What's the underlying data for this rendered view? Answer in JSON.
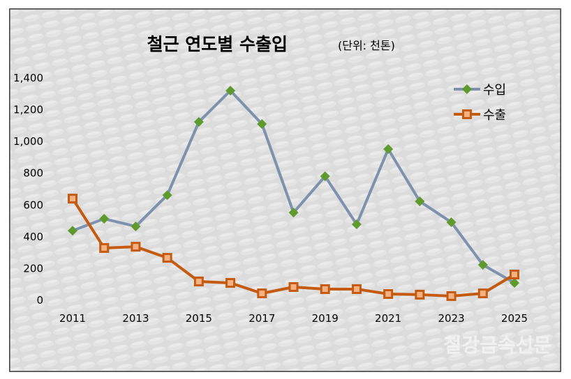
{
  "watermark": "철강금속신문",
  "chart_data": {
    "type": "line",
    "title": "철근 연도별 수출입",
    "subtitle": "(단위: 천톤)",
    "xlabel": "",
    "ylabel": "",
    "ylim": [
      0,
      1400
    ],
    "yticks": [
      "0",
      "200",
      "400",
      "600",
      "800",
      "1,000",
      "1,200",
      "1,400"
    ],
    "ytick_values": [
      0,
      200,
      400,
      600,
      800,
      1000,
      1200,
      1400
    ],
    "x": [
      2011,
      2012,
      2013,
      2014,
      2015,
      2016,
      2017,
      2018,
      2019,
      2020,
      2021,
      2022,
      2023,
      2024,
      2025
    ],
    "xticks": [
      "2011",
      "2013",
      "2015",
      "2017",
      "2019",
      "2021",
      "2023",
      "2025"
    ],
    "xtick_values": [
      2011,
      2013,
      2015,
      2017,
      2019,
      2021,
      2023,
      2025
    ],
    "grid": false,
    "legend_position": "top-right",
    "series": [
      {
        "name": "수입",
        "color": "#7f92ad",
        "marker_color": "#5e9a2e",
        "marker": "diamond",
        "values": [
          434,
          509,
          461,
          658,
          1119,
          1316,
          1106,
          548,
          777,
          474,
          948,
          619,
          487,
          219,
          105
        ]
      },
      {
        "name": "수출",
        "color": "#c55a11",
        "marker_color": "#f4b183",
        "marker": "square",
        "values": [
          636,
          325,
          333,
          263,
          114,
          105,
          39,
          79,
          66,
          66,
          35,
          31,
          22,
          39,
          158
        ]
      }
    ]
  }
}
